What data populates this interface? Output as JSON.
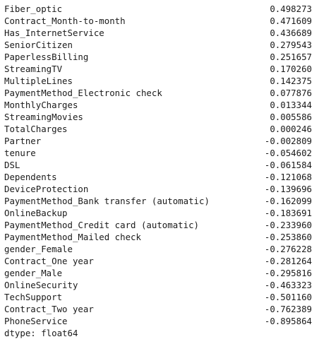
{
  "series": {
    "rows": [
      {
        "name": "Fiber_optic",
        "value": "0.498273"
      },
      {
        "name": "Contract_Month-to-month",
        "value": "0.471609"
      },
      {
        "name": "Has_InternetService",
        "value": "0.436689"
      },
      {
        "name": "SeniorCitizen",
        "value": "0.279543"
      },
      {
        "name": "PaperlessBilling",
        "value": "0.251657"
      },
      {
        "name": "StreamingTV",
        "value": "0.170260"
      },
      {
        "name": "MultipleLines",
        "value": "0.142375"
      },
      {
        "name": "PaymentMethod_Electronic check",
        "value": "0.077876"
      },
      {
        "name": "MonthlyCharges",
        "value": "0.013344"
      },
      {
        "name": "StreamingMovies",
        "value": "0.005586"
      },
      {
        "name": "TotalCharges",
        "value": "0.000246"
      },
      {
        "name": "Partner",
        "value": "-0.002809"
      },
      {
        "name": "tenure",
        "value": "-0.054602"
      },
      {
        "name": "DSL",
        "value": "-0.061584"
      },
      {
        "name": "Dependents",
        "value": "-0.121068"
      },
      {
        "name": "DeviceProtection",
        "value": "-0.139696"
      },
      {
        "name": "PaymentMethod_Bank transfer (automatic)",
        "value": "-0.162099"
      },
      {
        "name": "OnlineBackup",
        "value": "-0.183691"
      },
      {
        "name": "PaymentMethod_Credit card (automatic)",
        "value": "-0.233960"
      },
      {
        "name": "PaymentMethod_Mailed check",
        "value": "-0.253860"
      },
      {
        "name": "gender_Female",
        "value": "-0.276228"
      },
      {
        "name": "Contract_One year",
        "value": "-0.281264"
      },
      {
        "name": "gender_Male",
        "value": "-0.295816"
      },
      {
        "name": "OnlineSecurity",
        "value": "-0.463323"
      },
      {
        "name": "TechSupport",
        "value": "-0.501160"
      },
      {
        "name": "Contract_Two year",
        "value": "-0.762389"
      },
      {
        "name": "PhoneService",
        "value": "-0.895864"
      }
    ],
    "dtype": "dtype: float64"
  }
}
